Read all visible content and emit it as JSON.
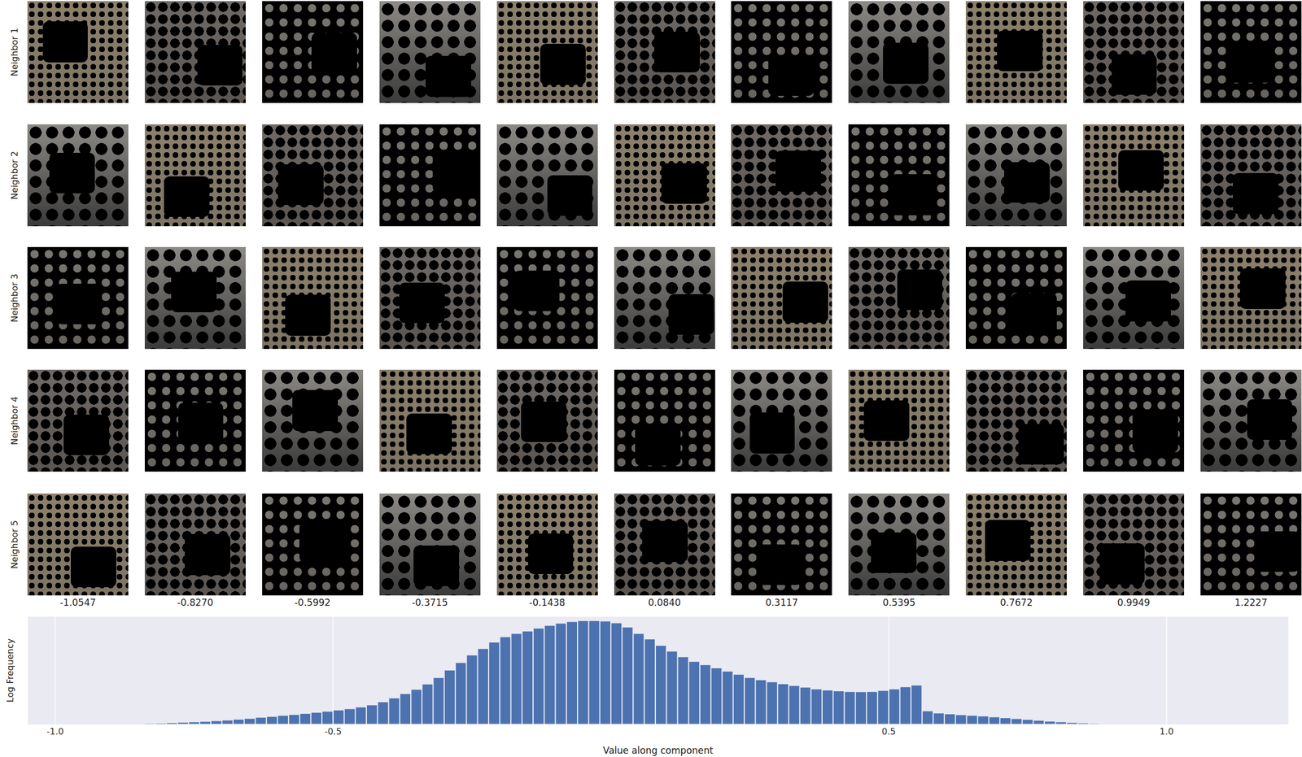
{
  "chart_data": {
    "type": "histogram",
    "x_label": "Value along component",
    "y_label": "Log Frequency",
    "bins": [
      -0.84,
      -0.82,
      -0.8,
      -0.78,
      -0.76,
      -0.74,
      -0.72,
      -0.7,
      -0.68,
      -0.66,
      -0.64,
      -0.62,
      -0.6,
      -0.58,
      -0.56,
      -0.54,
      -0.52,
      -0.5,
      -0.48,
      -0.46,
      -0.44,
      -0.42,
      -0.4,
      -0.38,
      -0.36,
      -0.34,
      -0.32,
      -0.3,
      -0.28,
      -0.26,
      -0.24,
      -0.22,
      -0.2,
      -0.18,
      -0.16,
      -0.14,
      -0.12,
      -0.1,
      -0.08,
      -0.06,
      -0.04,
      -0.02,
      0,
      0.02,
      0.04,
      0.06,
      0.08,
      0.1,
      0.12,
      0.14,
      0.16,
      0.18,
      0.2,
      0.22,
      0.24,
      0.26,
      0.28,
      0.3,
      0.32,
      0.34,
      0.36,
      0.38,
      0.4,
      0.42,
      0.44,
      0.46,
      0.48,
      0.5,
      0.52,
      0.54,
      0.56,
      0.58,
      0.6,
      0.62,
      0.64,
      0.66,
      0.68,
      0.7,
      0.72,
      0.74,
      0.76,
      0.78,
      0.8,
      0.82,
      0.84,
      0.86,
      0.88
    ],
    "values": [
      0.02,
      0.03,
      0.05,
      0.07,
      0.09,
      0.11,
      0.14,
      0.17,
      0.21,
      0.25,
      0.3,
      0.34,
      0.39,
      0.43,
      0.48,
      0.53,
      0.58,
      0.64,
      0.7,
      0.78,
      0.88,
      1.02,
      1.2,
      1.4,
      1.6,
      1.85,
      2.15,
      2.5,
      2.85,
      3.2,
      3.5,
      3.8,
      4.05,
      4.2,
      4.32,
      4.45,
      4.58,
      4.68,
      4.76,
      4.8,
      4.8,
      4.78,
      4.7,
      4.5,
      4.2,
      3.95,
      3.65,
      3.38,
      3.12,
      2.9,
      2.75,
      2.6,
      2.45,
      2.3,
      2.15,
      2.05,
      1.95,
      1.86,
      1.78,
      1.7,
      1.62,
      1.57,
      1.53,
      1.5,
      1.49,
      1.5,
      1.55,
      1.62,
      1.72,
      1.8,
      0.6,
      0.5,
      0.46,
      0.42,
      0.39,
      0.36,
      0.32,
      0.28,
      0.24,
      0.2,
      0.16,
      0.12,
      0.09,
      0.06,
      0.04,
      0.02
    ],
    "color": "#4c72b0",
    "xlim": [
      -1.05,
      1.22
    ],
    "xticks": [
      {
        "value": -1,
        "label": "-1.0"
      },
      {
        "value": -0.5,
        "label": "-0.5"
      },
      {
        "value": 0.5,
        "label": "0.5"
      },
      {
        "value": 1,
        "label": "1.0"
      }
    ],
    "ylim": [
      0,
      5
    ],
    "grid": true,
    "tick_labels": "x"
  },
  "image_grid": {
    "row_labels": [
      "Neighbor 1",
      "Neighbor 2",
      "Neighbor 3",
      "Neighbor 4",
      "Neighbor 5"
    ],
    "column_labels": [
      "-1.0547",
      "-0.8270",
      "-0.5992",
      "-0.3715",
      "-0.1438",
      "0.0840",
      "0.3117",
      "0.5395",
      "0.7672",
      "0.9949",
      "1.2227"
    ]
  }
}
